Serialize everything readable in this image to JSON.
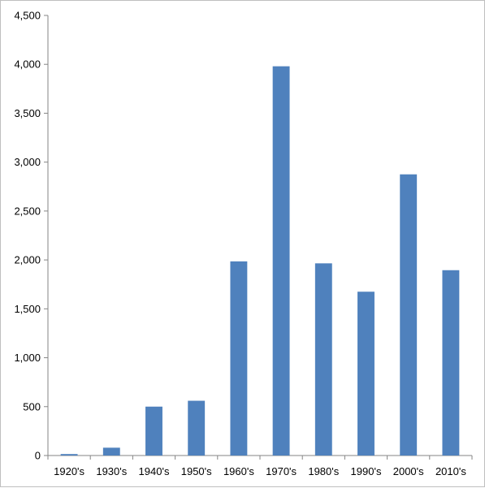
{
  "chart_data": {
    "type": "bar",
    "title": "",
    "xlabel": "",
    "ylabel": "",
    "categories": [
      "1920's",
      "1930's",
      "1940's",
      "1950's",
      "1960's",
      "1970's",
      "1980's",
      "1990's",
      "2000's",
      "2010's"
    ],
    "values": [
      15,
      80,
      500,
      560,
      1985,
      3980,
      1965,
      1675,
      2875,
      1895
    ],
    "ylim": [
      0,
      4500
    ],
    "yticks": [
      0,
      500,
      1000,
      1500,
      2000,
      2500,
      3000,
      3500,
      4000,
      4500
    ],
    "ytick_labels": [
      "0",
      "500",
      "1,000",
      "1,500",
      "2,000",
      "2,500",
      "3,000",
      "3,500",
      "4,000",
      "4,500"
    ],
    "grid": false,
    "legend": "none",
    "bar_color": "#4f81bd",
    "axis_color": "#868686"
  }
}
